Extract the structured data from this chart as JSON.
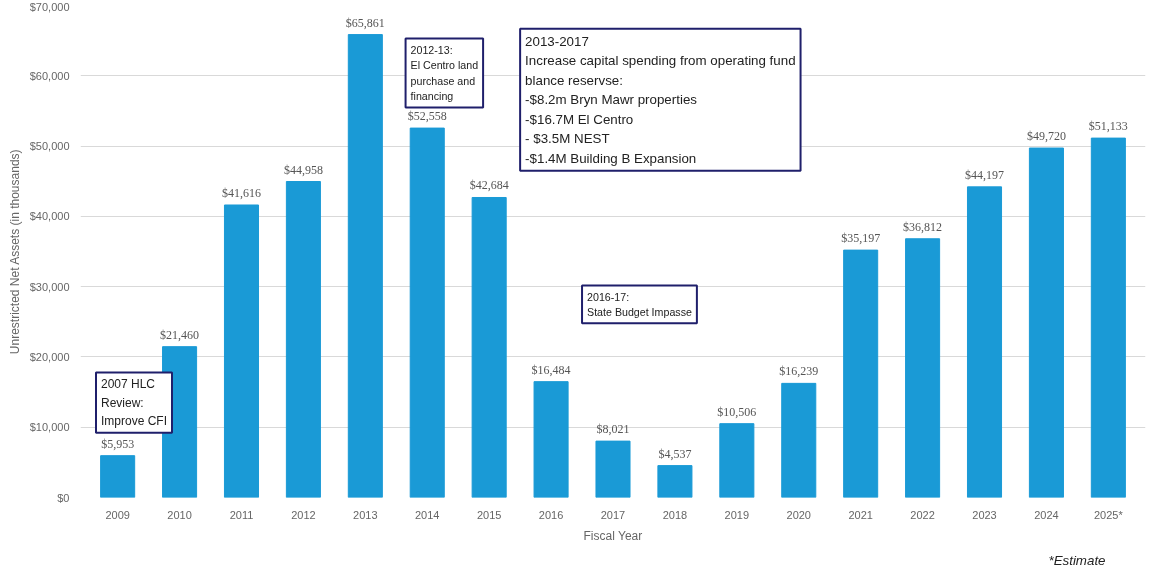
{
  "chart_data": {
    "type": "bar",
    "xlabel": "Fiscal Year",
    "ylabel": "Unrestricted Net Assets (in thousands)",
    "categories": [
      "2009",
      "2010",
      "2011",
      "2012",
      "2013",
      "2014",
      "2015",
      "2016",
      "2017",
      "2018",
      "2019",
      "2020",
      "2021",
      "2022",
      "2023",
      "2024",
      "2025*"
    ],
    "values": [
      5953,
      21460,
      41616,
      44958,
      65861,
      52558,
      42684,
      16484,
      8021,
      4537,
      10506,
      16239,
      35197,
      36812,
      44197,
      49720,
      51133
    ],
    "value_labels": [
      "$5,953",
      "$21,460",
      "$41,616",
      "$44,958",
      "$65,861",
      "$52,558",
      "$42,684",
      "$16,484",
      "$8,021",
      "$4,537",
      "$10,506",
      "$16,239",
      "$35,197",
      "$36,812",
      "$44,197",
      "$49,720",
      "$51,133"
    ],
    "color": "#1a9ad6",
    "ylim": [
      0,
      70000
    ],
    "yticks": [
      {
        "value": 0,
        "label": "$0"
      },
      {
        "value": 10000,
        "label": "$10,000"
      },
      {
        "value": 20000,
        "label": "$20,000"
      },
      {
        "value": 30000,
        "label": "$30,000"
      },
      {
        "value": 40000,
        "label": "$40,000"
      },
      {
        "value": 50000,
        "label": "$50,000"
      },
      {
        "value": 60000,
        "label": "$60,000"
      },
      {
        "value": 70000,
        "label": "$70,000"
      }
    ],
    "grid": "y",
    "annotations": [
      "2007 HLC\nReview:\nImprove CFI",
      "2012-13:\nEl Centro land\npurchase and\nfinancing",
      "2013-2017\nIncrease capital spending from operating fund\nblance reservse:\n-$8.2m Bryn Mawr properties\n-$16.7M El Centro\n- $3.5M NEST\n-$1.4M Building B Expansion",
      "2016-17:\nState Budget Impasse",
      "*Estimate"
    ]
  }
}
